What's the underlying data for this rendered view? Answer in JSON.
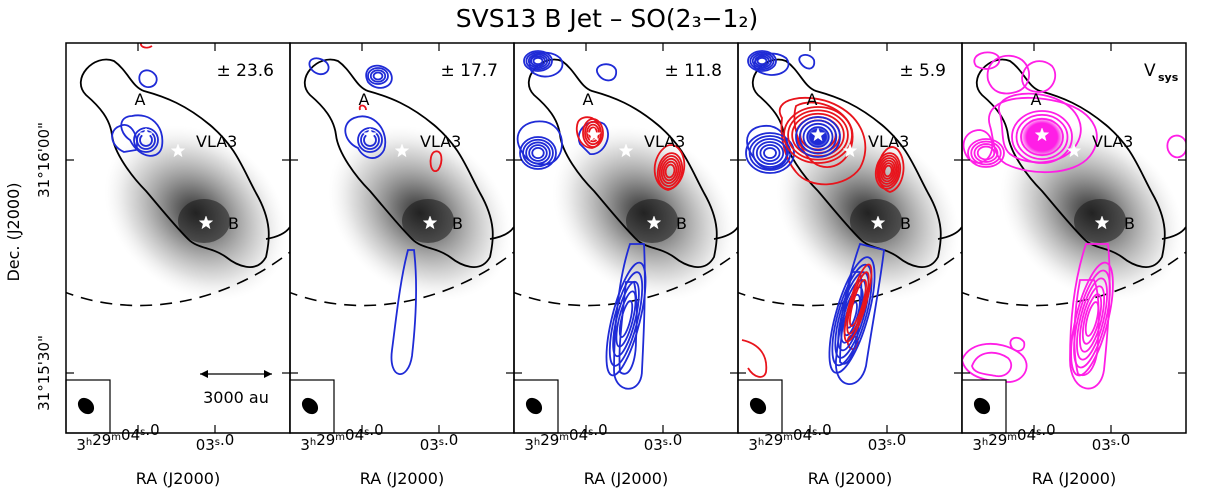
{
  "chart_data": {
    "type": "contour",
    "title": "SVS13 B Jet – SO(2₃−1₂)",
    "xlabel": "RA (J2000)",
    "ylabel": "Dec. (J2000)",
    "x_ticks": [
      {
        "label": "3h29m04s.0"
      },
      {
        "label": "03s.0"
      }
    ],
    "y_ticks": [
      {
        "label": "31°16'00\""
      },
      {
        "label": "31°15'30\""
      }
    ],
    "sources": [
      {
        "name": "A",
        "ra_offset_arcsec": 0,
        "dec_offset_arcsec": 0
      },
      {
        "name": "VLA3",
        "ra_offset_arcsec": -3.3,
        "dec_offset_arcsec": -1.4
      },
      {
        "name": "B",
        "ra_offset_arcsec": -6.2,
        "dec_offset_arcsec": -7.6
      }
    ],
    "scale_bar": {
      "label": "3000 au",
      "length_au": 3000
    },
    "panels": [
      {
        "velocity_label": "± 23.6",
        "contours": [
          "blue",
          "red"
        ]
      },
      {
        "velocity_label": "± 17.7",
        "contours": [
          "blue",
          "red"
        ]
      },
      {
        "velocity_label": "± 11.8",
        "contours": [
          "blue",
          "red"
        ]
      },
      {
        "velocity_label": "± 5.9",
        "contours": [
          "blue",
          "red"
        ]
      },
      {
        "velocity_label": "V",
        "velocity_sub": "sys",
        "contours": [
          "magenta"
        ]
      }
    ],
    "colors": {
      "blueshifted": "#1f2bd6",
      "redshifted": "#e8141c",
      "systemic": "#ff1ee6",
      "continuum": "#000000"
    }
  }
}
